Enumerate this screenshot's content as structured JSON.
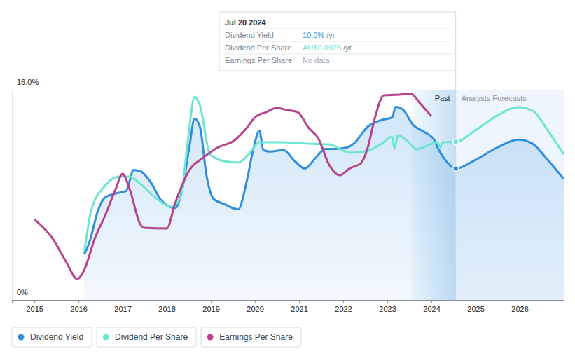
{
  "chart_data": {
    "type": "line",
    "xlim": [
      2014.49,
      2027.0
    ],
    "xticks": [
      2015,
      2016,
      2017,
      2018,
      2019,
      2020,
      2021,
      2022,
      2023,
      2024,
      2025,
      2026
    ],
    "ylim": [
      0,
      16
    ],
    "yticks": [
      {
        "value": 0,
        "label": "0%"
      },
      {
        "value": 16,
        "label": "16.0%"
      }
    ],
    "y2lim": [
      0,
      0.13
    ],
    "y2ticks": [],
    "grid": true,
    "legend": "bottom",
    "series": [
      {
        "name": "Dividend Yield",
        "color": "#2f8fdc",
        "x": [
          2016.13,
          2016.25,
          2016.44,
          2016.6,
          2016.84,
          2017.08,
          2017.17,
          2017.24,
          2017.4,
          2017.63,
          2017.87,
          2018.19,
          2018.35,
          2018.51,
          2018.63,
          2018.75,
          2018.9,
          2019.06,
          2019.3,
          2019.62,
          2019.81,
          2019.97,
          2020.1,
          2020.19,
          2020.33,
          2020.65,
          2020.89,
          2021.13,
          2021.37,
          2021.6,
          2021.81,
          2022.08,
          2022.24,
          2022.56,
          2022.87,
          2023.11,
          2023.19,
          2023.35,
          2023.59,
          2023.83,
          2024.06,
          2024.14,
          2024.3,
          2024.55,
          2025.02,
          2025.49,
          2025.97,
          2026.29,
          2026.6,
          2027.0
        ],
        "values": [
          3.47,
          4.43,
          6.8,
          7.8,
          8.1,
          8.3,
          9.2,
          9.9,
          9.8,
          9.0,
          7.6,
          7.0,
          8.4,
          11.6,
          13.8,
          13.2,
          9.5,
          7.7,
          7.3,
          6.9,
          9.0,
          11.6,
          12.9,
          11.4,
          11.3,
          11.4,
          10.6,
          10.0,
          10.8,
          11.5,
          11.5,
          11.6,
          11.9,
          13.2,
          13.7,
          13.9,
          14.7,
          14.5,
          13.3,
          12.8,
          12.2,
          11.6,
          10.7,
          10.0,
          10.7,
          11.6,
          12.2,
          11.9,
          10.8,
          9.2
        ]
      },
      {
        "name": "Dividend Per Share",
        "color": "#6ce5d3",
        "axis": "y2",
        "x": [
          2016.13,
          2016.29,
          2016.6,
          2016.92,
          2017.16,
          2017.4,
          2017.71,
          2018.11,
          2018.32,
          2018.48,
          2018.63,
          2018.75,
          2018.98,
          2019.3,
          2019.62,
          2019.86,
          2020.1,
          2020.57,
          2021.21,
          2021.68,
          2022.16,
          2022.56,
          2022.87,
          2023.11,
          2023.16,
          2023.24,
          2023.43,
          2023.67,
          2023.9,
          2024.14,
          2024.19,
          2024.25,
          2024.55,
          2025.02,
          2025.49,
          2025.97,
          2026.29,
          2026.68,
          2027.0
        ],
        "values": [
          0.0295,
          0.0555,
          0.0706,
          0.0763,
          0.0763,
          0.0719,
          0.0641,
          0.0576,
          0.0641,
          0.0988,
          0.1257,
          0.1205,
          0.0902,
          0.0858,
          0.0849,
          0.0902,
          0.0975,
          0.0975,
          0.0966,
          0.0962,
          0.091,
          0.0923,
          0.0966,
          0.101,
          0.0936,
          0.1018,
          0.0988,
          0.0932,
          0.0953,
          0.0975,
          0.0936,
          0.0975,
          0.0978,
          0.1053,
          0.114,
          0.1192,
          0.117,
          0.1031,
          0.0901
        ]
      },
      {
        "name": "Earnings Per Share",
        "color": "#b8428d",
        "axis": "y2",
        "x": [
          2015.0,
          2015.41,
          2015.73,
          2015.97,
          2016.13,
          2016.37,
          2016.6,
          2016.84,
          2017.0,
          2017.16,
          2017.4,
          2017.48,
          2018.0,
          2018.19,
          2018.51,
          2018.83,
          2019.14,
          2019.54,
          2019.78,
          2020.02,
          2020.25,
          2020.49,
          2020.73,
          2020.97,
          2021.21,
          2021.44,
          2021.68,
          2021.92,
          2022.16,
          2022.4,
          2022.56,
          2022.71,
          2022.92,
          2023.27,
          2023.54,
          2023.75,
          2024.0
        ],
        "values": [
          0.0498,
          0.0381,
          0.023,
          0.013,
          0.0186,
          0.0381,
          0.052,
          0.0685,
          0.078,
          0.0685,
          0.0468,
          0.0446,
          0.0442,
          0.0598,
          0.0802,
          0.088,
          0.094,
          0.0988,
          0.1053,
          0.1135,
          0.1161,
          0.1187,
          0.1174,
          0.1161,
          0.1066,
          0.0997,
          0.0836,
          0.0771,
          0.0815,
          0.0845,
          0.0945,
          0.1118,
          0.1265,
          0.127,
          0.1274,
          0.1213,
          0.1135
        ]
      }
    ],
    "annotations": {
      "past": "Past",
      "forecast": "Analysts Forecasts"
    },
    "tooltip": {
      "x": 2024.55,
      "date": "Jul 20 2024",
      "rows": [
        {
          "label": "Dividend Yield",
          "value": "10.0%",
          "unit": "/yr"
        },
        {
          "label": "Dividend Per Share",
          "value": "AU$0.0978",
          "unit": "/yr"
        },
        {
          "label": "Earnings Per Share",
          "value": "No data"
        }
      ]
    }
  }
}
